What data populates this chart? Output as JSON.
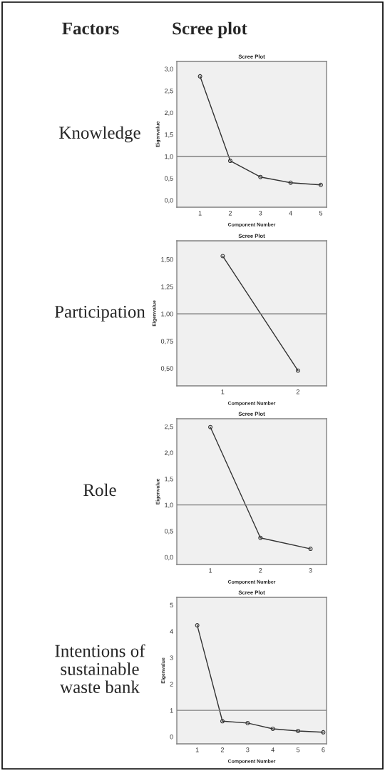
{
  "chart_data": [
    {
      "type": "line",
      "title": "Scree Plot",
      "xlabel": "Component Number",
      "ylabel": "Eigenvalue",
      "annotations": [
        "Factors",
        "Scree plot",
        "Knowledge"
      ],
      "x": [
        1,
        2,
        3,
        4,
        5
      ],
      "series": [
        {
          "color": "#333333",
          "values": [
            2.83,
            0.9,
            0.53,
            0.4,
            0.35
          ]
        }
      ],
      "xlim": [
        0.23,
        5.19
      ],
      "xticks": [
        1,
        2,
        3,
        4,
        5
      ],
      "ylim": [
        -0.16,
        3.17
      ],
      "yticks": [
        {
          "value": 0,
          "label": "0,0"
        },
        {
          "value": 0.5,
          "label": "0,5"
        },
        {
          "value": 1,
          "label": "1,0"
        },
        {
          "value": 1.5,
          "label": "1,5"
        },
        {
          "value": 2,
          "label": "2,0"
        },
        {
          "value": 2.5,
          "label": "2,5"
        },
        {
          "value": 3,
          "label": "3,0"
        }
      ],
      "ref_lines": [
        {
          "axis": "y",
          "value": 1,
          "color": "#808080"
        }
      ],
      "marker": "circle",
      "line_style": "solid"
    },
    {
      "type": "line",
      "title": "Scree Plot",
      "xlabel": "Component Number",
      "ylabel": "Eigenvalue",
      "annotations": [
        "Participation"
      ],
      "x": [
        1,
        2
      ],
      "series": [
        {
          "color": "#333333",
          "values": [
            1.53,
            0.48
          ]
        }
      ],
      "xlim": [
        0.39,
        2.38
      ],
      "xticks": [
        1,
        2
      ],
      "ylim": [
        0.34,
        1.67
      ],
      "yticks": [
        {
          "value": 0.5,
          "label": "0,50"
        },
        {
          "value": 0.75,
          "label": "0,75"
        },
        {
          "value": 1,
          "label": "1,00"
        },
        {
          "value": 1.25,
          "label": "1,25"
        },
        {
          "value": 1.5,
          "label": "1,50"
        }
      ],
      "ref_lines": [
        {
          "axis": "y",
          "value": 1,
          "color": "#808080"
        }
      ],
      "marker": "circle",
      "line_style": "solid"
    },
    {
      "type": "line",
      "title": "Scree Plot",
      "xlabel": "Component Number",
      "ylabel": "Eigenvalue",
      "annotations": [
        "Role"
      ],
      "x": [
        1,
        2,
        3
      ],
      "series": [
        {
          "color": "#333333",
          "values": [
            2.49,
            0.37,
            0.16
          ]
        }
      ],
      "xlim": [
        0.33,
        3.32
      ],
      "xticks": [
        1,
        2,
        3
      ],
      "ylim": [
        -0.14,
        2.65
      ],
      "yticks": [
        {
          "value": 0,
          "label": "0,0"
        },
        {
          "value": 0.5,
          "label": "0,5"
        },
        {
          "value": 1,
          "label": "1,0"
        },
        {
          "value": 1.5,
          "label": "1,5"
        },
        {
          "value": 2,
          "label": "2,0"
        },
        {
          "value": 2.5,
          "label": "2,5"
        }
      ],
      "ref_lines": [
        {
          "axis": "y",
          "value": 1,
          "color": "#808080"
        }
      ],
      "marker": "circle",
      "line_style": "solid"
    },
    {
      "type": "line",
      "title": "Scree Plot",
      "xlabel": "Component Number",
      "ylabel": "Eigenvalue",
      "annotations": [
        "Intentions of\nsustainable\nwaste bank"
      ],
      "x": [
        1,
        2,
        3,
        4,
        5,
        6
      ],
      "series": [
        {
          "color": "#333333",
          "values": [
            4.23,
            0.59,
            0.52,
            0.3,
            0.22,
            0.17
          ]
        }
      ],
      "xlim": [
        0.19,
        6.13
      ],
      "xticks": [
        1,
        2,
        3,
        4,
        5,
        6
      ],
      "ylim": [
        -0.27,
        5.29
      ],
      "yticks": [
        0,
        1,
        2,
        3,
        4,
        5
      ],
      "ref_lines": [
        {
          "axis": "y",
          "value": 1,
          "color": "#808080"
        }
      ],
      "marker": "circle",
      "line_style": "solid"
    }
  ]
}
